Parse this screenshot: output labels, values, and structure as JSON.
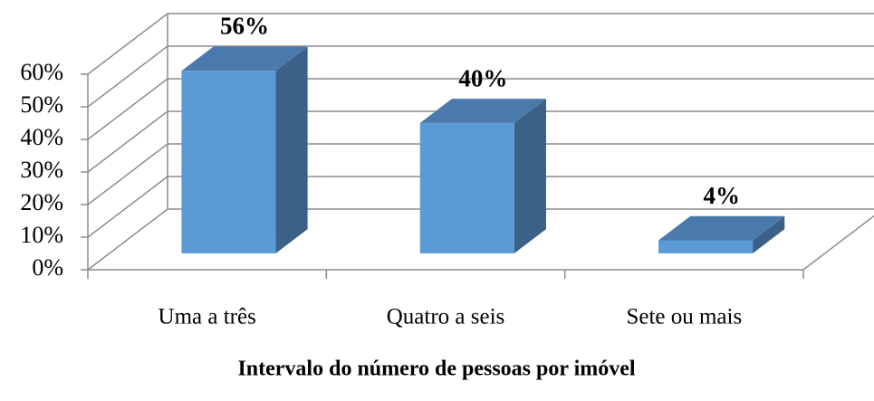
{
  "chart_data": {
    "type": "bar3d",
    "x_label": "Intervalo do número de pessoas por imóvel",
    "categories": [
      "Uma a três",
      "Quatro a seis",
      "Sete ou mais"
    ],
    "values": [
      56,
      40,
      4
    ],
    "value_labels": [
      "56%",
      "40%",
      "4%"
    ],
    "color": "#5b9bd5",
    "ylim": [
      0,
      60
    ],
    "yticks": [
      {
        "value": 0,
        "label": "0%"
      },
      {
        "value": 10,
        "label": "10%"
      },
      {
        "value": 20,
        "label": "20%"
      },
      {
        "value": 30,
        "label": "30%"
      },
      {
        "value": 40,
        "label": "40%"
      },
      {
        "value": 50,
        "label": "50%"
      },
      {
        "value": 60,
        "label": "60%"
      }
    ],
    "grid": true
  }
}
